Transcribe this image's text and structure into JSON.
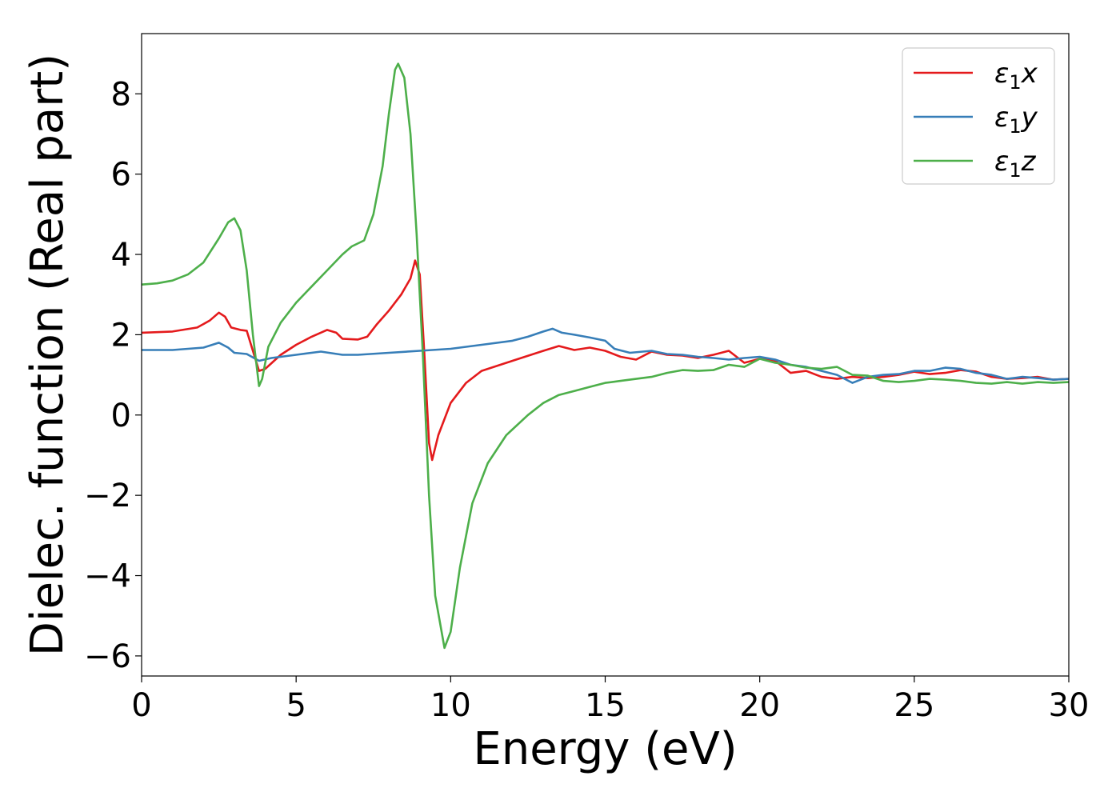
{
  "chart_data": {
    "type": "line",
    "xlabel": "Energy (eV)",
    "ylabel": "Dielec. function (Real part)",
    "xlim": [
      0,
      30
    ],
    "ylim": [
      -6.5,
      9.5
    ],
    "xticks": [
      0,
      5,
      10,
      15,
      20,
      25,
      30
    ],
    "yticks": [
      -6,
      -4,
      -2,
      0,
      2,
      4,
      6,
      8
    ],
    "xtick_labels": [
      "0",
      "5",
      "10",
      "15",
      "20",
      "25",
      "30"
    ],
    "ytick_labels": [
      "−6",
      "−4",
      "−2",
      "0",
      "2",
      "4",
      "6",
      "8"
    ],
    "grid": false,
    "legend_position": "top-right",
    "series": [
      {
        "name": "ε1x",
        "legend_main": "ε",
        "legend_sub": "1",
        "legend_var": "x",
        "color": "#e41a1c",
        "points": [
          [
            0,
            2.05
          ],
          [
            1,
            2.08
          ],
          [
            1.8,
            2.18
          ],
          [
            2.2,
            2.35
          ],
          [
            2.5,
            2.55
          ],
          [
            2.7,
            2.45
          ],
          [
            2.9,
            2.18
          ],
          [
            3.2,
            2.12
          ],
          [
            3.4,
            2.1
          ],
          [
            3.6,
            1.6
          ],
          [
            3.8,
            1.1
          ],
          [
            4.0,
            1.15
          ],
          [
            4.5,
            1.5
          ],
          [
            5.0,
            1.75
          ],
          [
            5.5,
            1.95
          ],
          [
            6.0,
            2.12
          ],
          [
            6.3,
            2.05
          ],
          [
            6.5,
            1.9
          ],
          [
            7.0,
            1.88
          ],
          [
            7.3,
            1.95
          ],
          [
            7.6,
            2.25
          ],
          [
            8.0,
            2.6
          ],
          [
            8.4,
            3.0
          ],
          [
            8.7,
            3.4
          ],
          [
            8.85,
            3.85
          ],
          [
            9.0,
            3.5
          ],
          [
            9.15,
            1.5
          ],
          [
            9.3,
            -0.7
          ],
          [
            9.4,
            -1.12
          ],
          [
            9.6,
            -0.5
          ],
          [
            10.0,
            0.3
          ],
          [
            10.5,
            0.8
          ],
          [
            11.0,
            1.1
          ],
          [
            12.0,
            1.35
          ],
          [
            13.0,
            1.6
          ],
          [
            13.5,
            1.72
          ],
          [
            14.0,
            1.62
          ],
          [
            14.5,
            1.68
          ],
          [
            15.0,
            1.6
          ],
          [
            15.5,
            1.45
          ],
          [
            16.0,
            1.38
          ],
          [
            16.5,
            1.58
          ],
          [
            17.0,
            1.5
          ],
          [
            17.5,
            1.48
          ],
          [
            18.0,
            1.42
          ],
          [
            18.5,
            1.5
          ],
          [
            19.0,
            1.6
          ],
          [
            19.5,
            1.3
          ],
          [
            20.0,
            1.4
          ],
          [
            20.5,
            1.35
          ],
          [
            21.0,
            1.05
          ],
          [
            21.5,
            1.1
          ],
          [
            22.0,
            0.95
          ],
          [
            22.5,
            0.9
          ],
          [
            23.0,
            0.95
          ],
          [
            23.5,
            0.92
          ],
          [
            24.0,
            0.95
          ],
          [
            24.5,
            1.0
          ],
          [
            25.0,
            1.08
          ],
          [
            25.5,
            1.02
          ],
          [
            26.0,
            1.05
          ],
          [
            26.5,
            1.12
          ],
          [
            27.0,
            1.08
          ],
          [
            27.5,
            0.95
          ],
          [
            28.0,
            0.9
          ],
          [
            28.5,
            0.92
          ],
          [
            29.0,
            0.95
          ],
          [
            29.5,
            0.88
          ],
          [
            30.0,
            0.9
          ]
        ]
      },
      {
        "name": "ε1y",
        "legend_main": "ε",
        "legend_sub": "1",
        "legend_var": "y",
        "color": "#377eb8",
        "points": [
          [
            0,
            1.62
          ],
          [
            1,
            1.62
          ],
          [
            2,
            1.68
          ],
          [
            2.5,
            1.8
          ],
          [
            2.8,
            1.68
          ],
          [
            3.0,
            1.55
          ],
          [
            3.4,
            1.52
          ],
          [
            3.8,
            1.35
          ],
          [
            4.2,
            1.42
          ],
          [
            5.0,
            1.5
          ],
          [
            5.8,
            1.58
          ],
          [
            6.5,
            1.5
          ],
          [
            7.0,
            1.5
          ],
          [
            8.0,
            1.55
          ],
          [
            9.0,
            1.6
          ],
          [
            10.0,
            1.65
          ],
          [
            11.0,
            1.75
          ],
          [
            12.0,
            1.85
          ],
          [
            12.5,
            1.95
          ],
          [
            13.0,
            2.08
          ],
          [
            13.3,
            2.15
          ],
          [
            13.6,
            2.05
          ],
          [
            14.0,
            2.0
          ],
          [
            14.5,
            1.93
          ],
          [
            15.0,
            1.85
          ],
          [
            15.3,
            1.65
          ],
          [
            15.8,
            1.55
          ],
          [
            16.5,
            1.6
          ],
          [
            17.0,
            1.52
          ],
          [
            17.5,
            1.5
          ],
          [
            18.0,
            1.45
          ],
          [
            18.5,
            1.42
          ],
          [
            19.0,
            1.38
          ],
          [
            19.5,
            1.42
          ],
          [
            20.0,
            1.45
          ],
          [
            20.5,
            1.38
          ],
          [
            21.0,
            1.25
          ],
          [
            21.5,
            1.2
          ],
          [
            22.0,
            1.1
          ],
          [
            22.5,
            1.0
          ],
          [
            23.0,
            0.8
          ],
          [
            23.5,
            0.95
          ],
          [
            24.0,
            1.0
          ],
          [
            24.5,
            1.02
          ],
          [
            25.0,
            1.1
          ],
          [
            25.5,
            1.1
          ],
          [
            26.0,
            1.18
          ],
          [
            26.5,
            1.15
          ],
          [
            27.0,
            1.05
          ],
          [
            27.5,
            1.0
          ],
          [
            28.0,
            0.9
          ],
          [
            28.5,
            0.95
          ],
          [
            29.0,
            0.92
          ],
          [
            29.5,
            0.88
          ],
          [
            30.0,
            0.9
          ]
        ]
      },
      {
        "name": "ε1z",
        "legend_main": "ε",
        "legend_sub": "1",
        "legend_var": "z",
        "color": "#4daf4a",
        "points": [
          [
            0,
            3.25
          ],
          [
            0.5,
            3.28
          ],
          [
            1.0,
            3.35
          ],
          [
            1.5,
            3.5
          ],
          [
            2.0,
            3.8
          ],
          [
            2.5,
            4.4
          ],
          [
            2.8,
            4.8
          ],
          [
            3.0,
            4.9
          ],
          [
            3.2,
            4.6
          ],
          [
            3.4,
            3.6
          ],
          [
            3.6,
            2.0
          ],
          [
            3.8,
            0.72
          ],
          [
            3.9,
            0.9
          ],
          [
            4.1,
            1.7
          ],
          [
            4.5,
            2.3
          ],
          [
            5.0,
            2.8
          ],
          [
            5.5,
            3.2
          ],
          [
            6.0,
            3.6
          ],
          [
            6.5,
            4.0
          ],
          [
            6.8,
            4.2
          ],
          [
            7.2,
            4.35
          ],
          [
            7.5,
            5.0
          ],
          [
            7.8,
            6.2
          ],
          [
            8.0,
            7.5
          ],
          [
            8.2,
            8.6
          ],
          [
            8.3,
            8.75
          ],
          [
            8.5,
            8.4
          ],
          [
            8.7,
            7.0
          ],
          [
            8.9,
            4.5
          ],
          [
            9.1,
            1.5
          ],
          [
            9.3,
            -2.0
          ],
          [
            9.5,
            -4.5
          ],
          [
            9.8,
            -5.8
          ],
          [
            10.0,
            -5.4
          ],
          [
            10.3,
            -3.8
          ],
          [
            10.7,
            -2.2
          ],
          [
            11.2,
            -1.2
          ],
          [
            11.8,
            -0.5
          ],
          [
            12.5,
            0.0
          ],
          [
            13.0,
            0.3
          ],
          [
            13.5,
            0.5
          ],
          [
            14.0,
            0.6
          ],
          [
            14.5,
            0.7
          ],
          [
            15.0,
            0.8
          ],
          [
            15.5,
            0.85
          ],
          [
            16.0,
            0.9
          ],
          [
            16.5,
            0.95
          ],
          [
            17.0,
            1.05
          ],
          [
            17.5,
            1.12
          ],
          [
            18.0,
            1.1
          ],
          [
            18.5,
            1.12
          ],
          [
            19.0,
            1.25
          ],
          [
            19.5,
            1.2
          ],
          [
            20.0,
            1.4
          ],
          [
            20.5,
            1.3
          ],
          [
            21.0,
            1.25
          ],
          [
            21.5,
            1.18
          ],
          [
            22.0,
            1.15
          ],
          [
            22.5,
            1.2
          ],
          [
            23.0,
            1.0
          ],
          [
            23.5,
            0.98
          ],
          [
            24.0,
            0.85
          ],
          [
            24.5,
            0.82
          ],
          [
            25.0,
            0.85
          ],
          [
            25.5,
            0.9
          ],
          [
            26.0,
            0.88
          ],
          [
            26.5,
            0.85
          ],
          [
            27.0,
            0.8
          ],
          [
            27.5,
            0.78
          ],
          [
            28.0,
            0.82
          ],
          [
            28.5,
            0.78
          ],
          [
            29.0,
            0.82
          ],
          [
            29.5,
            0.8
          ],
          [
            30.0,
            0.82
          ]
        ]
      }
    ]
  }
}
